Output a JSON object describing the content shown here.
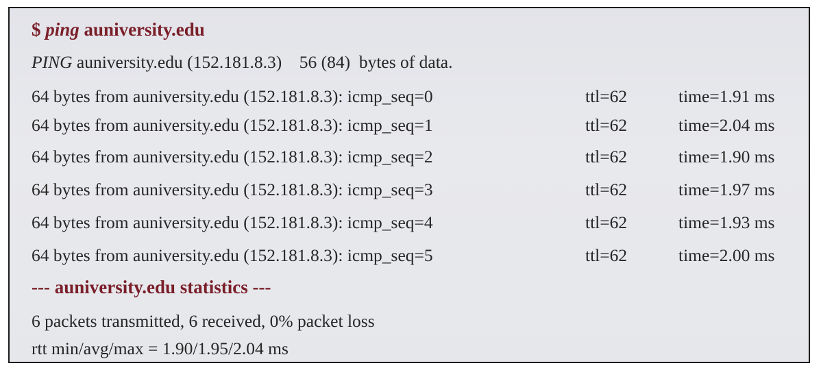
{
  "command": {
    "prompt": "$",
    "cmd": "ping",
    "host": "auniversity.edu"
  },
  "ping_header": {
    "label": "PING",
    "rest": "auniversity.edu (152.181.8.3)",
    "size": "56 (84)",
    "suffix": "bytes of data."
  },
  "replies": [
    {
      "prefix": "64 bytes from auniversity.edu (152.181.8.3): icmp_seq=0",
      "ttl": "ttl=62",
      "time": "time=1.91 ms"
    },
    {
      "prefix": "64 bytes from auniversity.edu (152.181.8.3): icmp_seq=1",
      "ttl": "ttl=62",
      "time": "time=2.04 ms"
    },
    {
      "prefix": "64 bytes from auniversity.edu (152.181.8.3): icmp_seq=2",
      "ttl": "ttl=62",
      "time": "time=1.90 ms"
    },
    {
      "prefix": "64 bytes from auniversity.edu (152.181.8.3): icmp_seq=3",
      "ttl": "ttl=62",
      "time": "time=1.97 ms"
    },
    {
      "prefix": "64 bytes from auniversity.edu (152.181.8.3): icmp_seq=4",
      "ttl": "ttl=62",
      "time": "time=1.93 ms"
    },
    {
      "prefix": "64 bytes from auniversity.edu (152.181.8.3): icmp_seq=5",
      "ttl": "ttl=62",
      "time": "time=2.00 ms"
    }
  ],
  "statistics": {
    "heading": "--- auniversity.edu statistics ---",
    "packets": "6 packets transmitted, 6 received, 0% packet loss",
    "rtt": "rtt min/avg/max = 1.90/1.95/2.04 ms"
  },
  "colors": {
    "heading": "#7a1f2a",
    "text": "#262626",
    "background": "#e5e6ea",
    "border": "#1c1c1c"
  }
}
